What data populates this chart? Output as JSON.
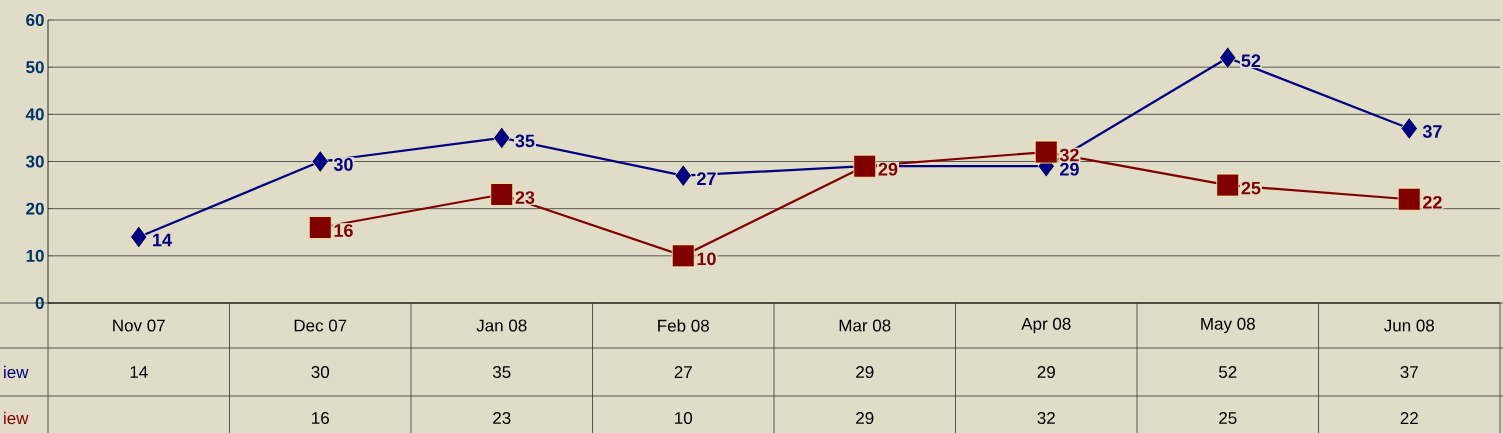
{
  "chart_data": {
    "type": "line",
    "categories": [
      "Nov 07",
      "Dec 07",
      "Jan 08",
      "Feb 08",
      "Mar 08",
      "Apr 08",
      "May 08",
      "Jun 08"
    ],
    "series": [
      {
        "name": "iew",
        "color": "#000080",
        "marker": "diamond",
        "values": [
          14,
          30,
          35,
          27,
          29,
          29,
          52,
          37
        ]
      },
      {
        "name": "iew",
        "color": "#800000",
        "marker": "square",
        "values": [
          null,
          16,
          23,
          10,
          29,
          32,
          25,
          22
        ]
      }
    ],
    "ylim": [
      0,
      60
    ],
    "yticks": [
      0,
      10,
      20,
      30,
      40,
      50,
      60
    ],
    "annotations": [
      {
        "text": "14",
        "x": "Nov 07",
        "y": 14
      },
      {
        "text": "30",
        "x": "Dec 07",
        "y": 30
      },
      {
        "text": "35",
        "x": "Jan 08",
        "y": 35
      },
      {
        "text": "27",
        "x": "Feb 08",
        "y": 27
      },
      {
        "text": "29",
        "x": "Apr 08",
        "y": 29
      },
      {
        "text": "52",
        "x": "May 08",
        "y": 52
      },
      {
        "text": "37",
        "x": "Jun 08",
        "y": 37
      },
      {
        "text": "16",
        "x": "Dec 07",
        "y": 16
      },
      {
        "text": "23",
        "x": "Jan 08",
        "y": 23
      },
      {
        "text": "10",
        "x": "Feb 08",
        "y": 10
      },
      {
        "text": "29",
        "x": "Mar 08",
        "y": 29
      },
      {
        "text": "32",
        "x": "Apr 08",
        "y": 32
      },
      {
        "text": "25",
        "x": "May 08",
        "y": 25
      },
      {
        "text": "22",
        "x": "Jun 08",
        "y": 22
      }
    ],
    "grid": "y",
    "data_labels": true,
    "legend": false
  }
}
